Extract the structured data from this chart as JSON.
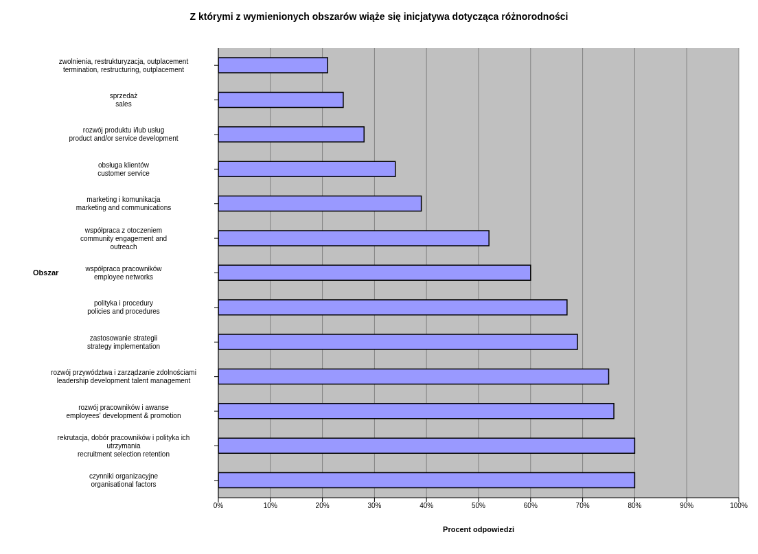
{
  "chart_data": {
    "type": "bar",
    "orientation": "horizontal",
    "title": "Z którymi z wymienionych obszarów wiąże się inicjatywa dotycząca różnorodności",
    "xlabel": "Procent odpowiedzi",
    "ylabel": "Obszar",
    "categories": [
      "zwolnienia, restrukturyzacja, outplacement\ntermination, restructuring, outplacement",
      "sprzedaż\nsales",
      "rozwój produktu i/lub usług\nproduct and/or service development",
      "obsługa klientów\ncustomer service",
      "marketing i komunikacja\nmarketing and communications",
      "współpraca z otoczeniem\ncommunity engagement and\noutreach",
      "współpraca pracowników\nemployee networks",
      "polityka i procedury\npolicies and procedures",
      "zastosowanie strategii\nstrategy implementation",
      "rozwój przywództwa i zarządzanie zdolnościami\nleadership development talent  management",
      "rozwój pracowników i awanse\nemployees' development & promotion",
      "rekrutacja, dobór pracowników i polityka ich\nutrzymania\nrecruitment selection retention",
      "czynniki organizacyjne\norganisational factors"
    ],
    "values": [
      21,
      24,
      28,
      34,
      39,
      52,
      60,
      67,
      69,
      75,
      76,
      80,
      80
    ],
    "color": "#9999ff",
    "xlim": [
      0,
      100
    ],
    "xticks": [
      {
        "value": 0,
        "label": "0%"
      },
      {
        "value": 10,
        "label": "10%"
      },
      {
        "value": 20,
        "label": "20%"
      },
      {
        "value": 30,
        "label": "30%"
      },
      {
        "value": 40,
        "label": "40%"
      },
      {
        "value": 50,
        "label": "50%"
      },
      {
        "value": 60,
        "label": "60%"
      },
      {
        "value": 70,
        "label": "70%"
      },
      {
        "value": 80,
        "label": "80%"
      },
      {
        "value": 90,
        "label": "90%"
      },
      {
        "value": 100,
        "label": "100%"
      }
    ],
    "grid": "x",
    "legend": false
  }
}
